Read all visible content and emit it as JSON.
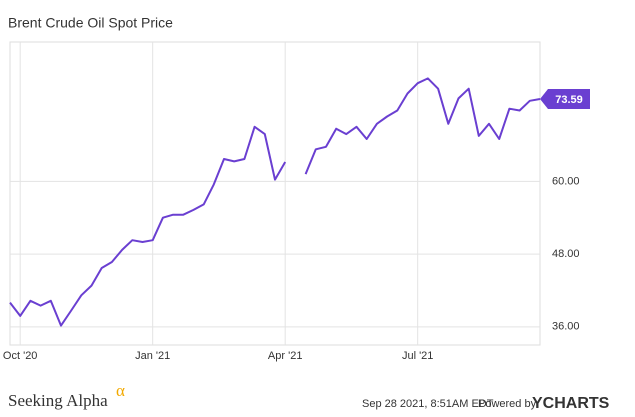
{
  "chart_data": {
    "type": "line",
    "title": "Brent Crude Oil Spot Price",
    "categories": [
      null,
      "Oct '20",
      null,
      null,
      null,
      null,
      null,
      null,
      null,
      null,
      null,
      null,
      null,
      null,
      "Jan '21",
      null,
      null,
      null,
      null,
      null,
      null,
      null,
      null,
      null,
      null,
      null,
      null,
      "Apr '21",
      null,
      null,
      null,
      null,
      null,
      null,
      null,
      null,
      null,
      null,
      null,
      null,
      "Jul '21",
      null,
      null,
      null,
      null,
      null,
      null,
      null,
      null,
      null,
      null,
      null,
      null
    ],
    "series": [
      {
        "name": "Brent Crude Oil Spot Price",
        "color": "#6a3fd1",
        "values": [
          40,
          37.8,
          40.3,
          39.5,
          40.3,
          36.2,
          38.7,
          41.2,
          42.8,
          45.7,
          46.7,
          48.7,
          50.3,
          50,
          50.3,
          54,
          54.5,
          54.5,
          55.3,
          56.2,
          59.5,
          63.7,
          63.3,
          63.7,
          69,
          67.8,
          60.3,
          63.2,
          null,
          61.2,
          65.3,
          65.7,
          68.7,
          67.8,
          69,
          67,
          69.5,
          70.7,
          71.7,
          74.5,
          76.2,
          77,
          75.3,
          69.5,
          73.7,
          75.3,
          67.5,
          69.5,
          67,
          72,
          71.7,
          73.3,
          73.59
        ]
      }
    ],
    "ylim": [
      33,
      83
    ],
    "yticks": [
      {
        "value": 36,
        "label": "36.00"
      },
      {
        "value": 48,
        "label": "48.00"
      },
      {
        "value": 60,
        "label": "60.00"
      }
    ],
    "grid": true,
    "footer": {
      "brand": "Seeking Alpha",
      "brand_mark": "α",
      "timestamp": "Sep 28 2021, 8:51AM EDT.",
      "powered_by": "Powered by",
      "provider": "YCHARTS"
    }
  }
}
